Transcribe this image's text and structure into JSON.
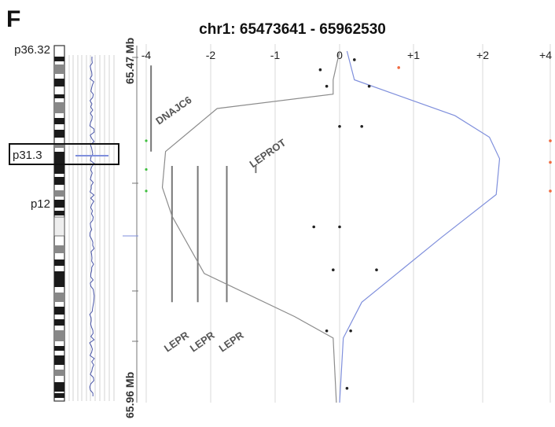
{
  "panel_label": "F",
  "title": "chr1: 65473641 - 65962530",
  "chromosome": {
    "band_labels": [
      "p36.32",
      "p31.3",
      "p12"
    ],
    "highlighted_band": "p31.3"
  },
  "region": {
    "start_label": "65.47 Mb",
    "end_label": "65.96 Mb"
  },
  "colors": {
    "gain_line": "#7f8fdc",
    "loss_line": "#8c8c8c",
    "probe_dot": "#222222",
    "gain_outlier": "#f06a40",
    "loss_outlier": "#3fbf3f",
    "gene_bar": "#777777"
  },
  "chart_data": {
    "type": "line",
    "title": "chr1: 65473641 - 65962530",
    "x_ticks": [
      "-4",
      "-2",
      "-1",
      "0",
      "+1",
      "+2",
      "+4"
    ],
    "x_tick_values": [
      -4,
      -2,
      -1,
      0,
      1,
      2,
      4
    ],
    "ylim_mb": [
      65.47,
      65.96
    ],
    "genes": [
      {
        "name": "DNAJC6",
        "start_mb": 65.49,
        "end_mb": 65.61,
        "track": -3.85
      },
      {
        "name": "LEPROT",
        "start_mb": 65.63,
        "end_mb": 65.64,
        "track": -1.3
      },
      {
        "name": "LEPR",
        "start_mb": 65.63,
        "end_mb": 65.82,
        "track": -3.2
      },
      {
        "name": "LEPR",
        "start_mb": 65.63,
        "end_mb": 65.82,
        "track": -2.4
      },
      {
        "name": "LEPR",
        "start_mb": 65.63,
        "end_mb": 65.82,
        "track": -1.75
      }
    ],
    "series": [
      {
        "values": [
          {
            "x": 0.0,
            "y": 65.47
          },
          {
            "x": -0.1,
            "y": 65.51
          },
          {
            "x": -0.1,
            "y": 65.53
          },
          {
            "x": -1.9,
            "y": 65.55
          },
          {
            "x": -3.4,
            "y": 65.61
          },
          {
            "x": -3.5,
            "y": 65.66
          },
          {
            "x": -3.2,
            "y": 65.7
          },
          {
            "x": -2.2,
            "y": 65.78
          },
          {
            "x": -0.7,
            "y": 65.84
          },
          {
            "x": -0.1,
            "y": 65.87
          },
          {
            "x": -0.05,
            "y": 65.96
          }
        ]
      },
      {
        "values": [
          {
            "x": 0.1,
            "y": 65.47
          },
          {
            "x": 0.2,
            "y": 65.51
          },
          {
            "x": 1.6,
            "y": 65.56
          },
          {
            "x": 2.2,
            "y": 65.59
          },
          {
            "x": 2.5,
            "y": 65.62
          },
          {
            "x": 2.4,
            "y": 65.67
          },
          {
            "x": 1.4,
            "y": 65.73
          },
          {
            "x": 0.3,
            "y": 65.82
          },
          {
            "x": 0.05,
            "y": 65.87
          },
          {
            "x": 0.0,
            "y": 65.96
          }
        ]
      }
    ],
    "probe_points": [
      {
        "x": 0.2,
        "y": 65.482
      },
      {
        "x": -0.3,
        "y": 65.496
      },
      {
        "x": -0.2,
        "y": 65.519
      },
      {
        "x": 0.4,
        "y": 65.519
      },
      {
        "x": 0.0,
        "y": 65.575
      },
      {
        "x": 0.3,
        "y": 65.575
      },
      {
        "x": -0.4,
        "y": 65.715
      },
      {
        "x": 0.0,
        "y": 65.715
      },
      {
        "x": -0.1,
        "y": 65.775
      },
      {
        "x": 0.5,
        "y": 65.775
      },
      {
        "x": -0.2,
        "y": 65.86
      },
      {
        "x": 0.15,
        "y": 65.86
      },
      {
        "x": 0.1,
        "y": 65.94
      }
    ],
    "gain_outliers": [
      {
        "x": 0.8,
        "y": 65.493
      },
      {
        "x": 4.0,
        "y": 65.595
      },
      {
        "x": 4.0,
        "y": 65.625
      },
      {
        "x": 4.0,
        "y": 65.665
      }
    ],
    "loss_outliers": [
      {
        "x": -4.0,
        "y": 65.595
      },
      {
        "x": -4.0,
        "y": 65.635
      },
      {
        "x": -4.0,
        "y": 65.665
      }
    ]
  }
}
